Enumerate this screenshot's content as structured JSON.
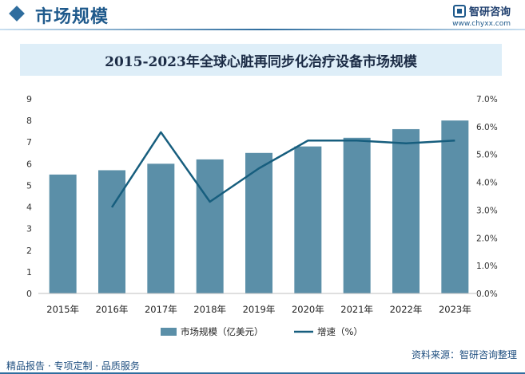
{
  "header": {
    "title": "市场规模",
    "logo_name": "智研咨询",
    "logo_url": "www.chyxx.com"
  },
  "footer": {
    "left_text": "精品报告 · 专项定制 · 品质服务",
    "source": "资料来源：智研咨询整理"
  },
  "colors": {
    "bar": "#5b8fa8",
    "line": "#175e7e",
    "header_accent": "#1f5a8c"
  },
  "chart_data": {
    "type": "bar",
    "title": "2015-2023年全球心脏再同步化治疗设备市场规模",
    "categories": [
      "2015年",
      "2016年",
      "2017年",
      "2018年",
      "2019年",
      "2020年",
      "2021年",
      "2022年",
      "2023年"
    ],
    "series": [
      {
        "name": "市场规模（亿美元）",
        "type": "bar",
        "axis": "left",
        "values": [
          5.5,
          5.7,
          6.0,
          6.2,
          6.5,
          6.8,
          7.2,
          7.6,
          8.0
        ]
      },
      {
        "name": "增速（%）",
        "type": "line",
        "axis": "right",
        "values": [
          null,
          3.1,
          5.8,
          3.3,
          4.5,
          5.5,
          5.5,
          5.4,
          5.5
        ]
      }
    ],
    "left_axis": {
      "ylim": [
        0,
        9
      ],
      "ticks": [
        "0",
        "1",
        "2",
        "3",
        "4",
        "5",
        "6",
        "7",
        "8",
        "9"
      ]
    },
    "right_axis": {
      "ylim": [
        0,
        7
      ],
      "ticks": [
        "0.0%",
        "1.0%",
        "2.0%",
        "3.0%",
        "4.0%",
        "5.0%",
        "6.0%",
        "7.0%"
      ]
    },
    "grid": false,
    "legend": "bottom"
  }
}
